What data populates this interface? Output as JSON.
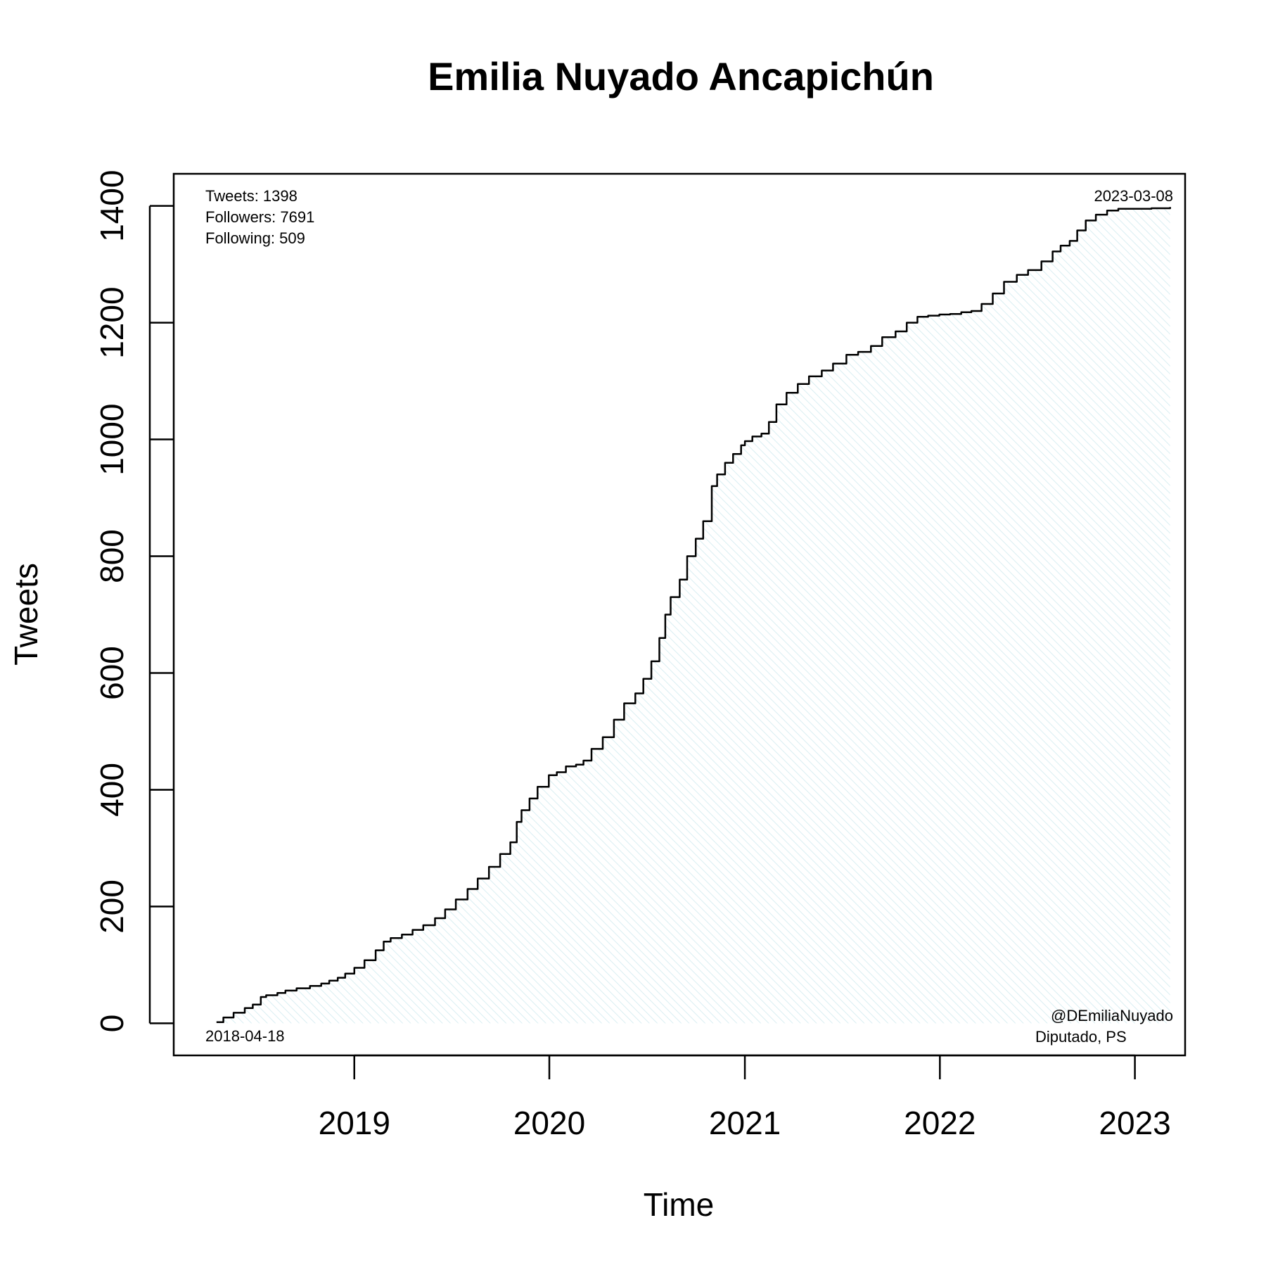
{
  "chart_data": {
    "type": "area",
    "title": "Emilia Nuyado Ancapichún",
    "xlabel": "Time",
    "ylabel": "Tweets",
    "xlim": [
      "2018-01-28",
      "2023-04-05"
    ],
    "ylim": [
      -55,
      1455
    ],
    "x_ticks": [
      "2019",
      "2020",
      "2021",
      "2022",
      "2023"
    ],
    "x_tick_dates": [
      "2019-01-01",
      "2020-01-01",
      "2021-01-01",
      "2022-01-01",
      "2023-01-01"
    ],
    "y_ticks": [
      0,
      200,
      400,
      600,
      800,
      1000,
      1200,
      1400
    ],
    "grid": false,
    "line_color": "#000000",
    "fill_color": "#d9eef2",
    "stats": [
      "Tweets: 1398",
      "Followers: 7691",
      "Following: 509"
    ],
    "start_label": "2018-04-18",
    "end_label": "2023-03-08",
    "handle": "@DEmiliaNuyado",
    "role": "Diputado, PS",
    "series": [
      {
        "x": [
          "2018-04-18",
          "2018-05-01",
          "2018-05-20",
          "2018-06-10",
          "2018-06-25",
          "2018-07-10",
          "2018-07-20",
          "2018-08-10",
          "2018-08-25",
          "2018-09-15",
          "2018-10-10",
          "2018-10-31",
          "2018-11-15",
          "2018-12-01",
          "2018-12-15",
          "2019-01-01",
          "2019-01-20",
          "2019-02-10",
          "2019-02-25",
          "2019-03-10",
          "2019-03-31",
          "2019-04-20",
          "2019-05-10",
          "2019-06-01",
          "2019-06-20",
          "2019-07-10",
          "2019-08-01",
          "2019-08-20",
          "2019-09-10",
          "2019-10-01",
          "2019-10-20",
          "2019-11-01",
          "2019-11-10",
          "2019-11-25",
          "2019-12-10",
          "2019-12-31",
          "2020-01-15",
          "2020-02-01",
          "2020-02-20",
          "2020-03-05",
          "2020-03-20",
          "2020-04-10",
          "2020-05-01",
          "2020-05-20",
          "2020-06-10",
          "2020-06-25",
          "2020-07-10",
          "2020-07-25",
          "2020-08-05",
          "2020-08-15",
          "2020-09-01",
          "2020-09-15",
          "2020-10-01",
          "2020-10-15",
          "2020-10-31",
          "2020-11-10",
          "2020-11-25",
          "2020-12-10",
          "2020-12-25",
          "2021-01-01",
          "2021-01-15",
          "2021-02-01",
          "2021-02-15",
          "2021-03-01",
          "2021-03-20",
          "2021-04-10",
          "2021-05-01",
          "2021-05-25",
          "2021-06-15",
          "2021-07-10",
          "2021-08-01",
          "2021-08-25",
          "2021-09-15",
          "2021-10-10",
          "2021-10-31",
          "2021-11-20",
          "2021-12-10",
          "2021-12-31",
          "2022-01-20",
          "2022-02-10",
          "2022-03-01",
          "2022-03-20",
          "2022-04-10",
          "2022-05-01",
          "2022-05-25",
          "2022-06-15",
          "2022-07-10",
          "2022-07-31",
          "2022-08-15",
          "2022-09-01",
          "2022-09-15",
          "2022-10-01",
          "2022-10-20",
          "2022-11-10",
          "2022-12-01",
          "2022-12-31",
          "2023-02-01",
          "2023-03-08"
        ],
        "y": [
          2,
          10,
          18,
          26,
          32,
          45,
          48,
          52,
          56,
          60,
          64,
          68,
          73,
          78,
          85,
          95,
          108,
          125,
          140,
          146,
          152,
          160,
          168,
          180,
          195,
          212,
          230,
          248,
          268,
          290,
          310,
          345,
          365,
          385,
          405,
          425,
          430,
          440,
          443,
          450,
          470,
          490,
          520,
          548,
          565,
          590,
          620,
          660,
          700,
          730,
          760,
          800,
          830,
          860,
          920,
          940,
          960,
          975,
          990,
          997,
          1005,
          1010,
          1030,
          1060,
          1080,
          1095,
          1108,
          1118,
          1130,
          1145,
          1150,
          1160,
          1175,
          1185,
          1200,
          1210,
          1212,
          1214,
          1215,
          1218,
          1220,
          1232,
          1250,
          1270,
          1282,
          1290,
          1305,
          1322,
          1332,
          1340,
          1358,
          1375,
          1385,
          1392,
          1395,
          1395,
          1396,
          1398
        ]
      }
    ]
  }
}
